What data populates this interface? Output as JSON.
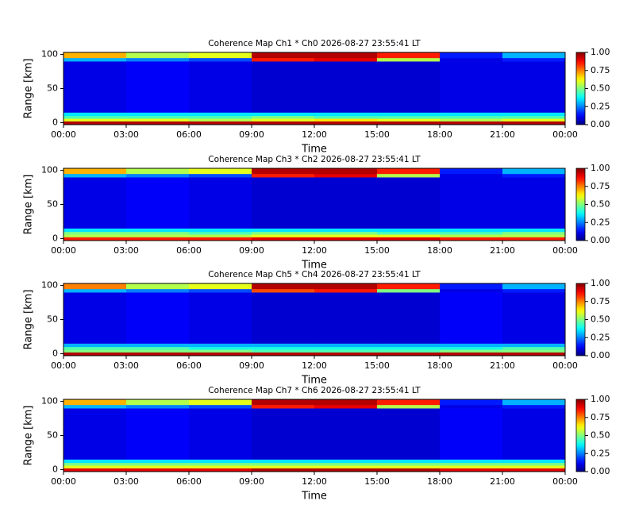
{
  "chart_data": [
    {
      "type": "heatmap",
      "title": "Coherence Map Ch1 * Ch0 2026-08-27 23:55:41 LT",
      "xlabel": "Time",
      "ylabel": "Range [km]",
      "x_edges": [
        0,
        3,
        6,
        9,
        12,
        15,
        18,
        21,
        24
      ],
      "y_edges": [
        -3,
        2,
        6,
        10,
        15,
        90,
        95,
        103
      ],
      "values": [
        [
          0.95,
          0.95,
          0.95,
          0.95,
          0.95,
          0.95,
          0.95,
          0.95
        ],
        [
          0.6,
          0.6,
          0.55,
          0.6,
          0.65,
          0.6,
          0.55,
          0.6
        ],
        [
          0.45,
          0.45,
          0.45,
          0.5,
          0.45,
          0.45,
          0.45,
          0.45
        ],
        [
          0.35,
          0.35,
          0.35,
          0.35,
          0.35,
          0.35,
          0.35,
          0.35
        ],
        [
          0.1,
          0.12,
          0.1,
          0.08,
          0.08,
          0.08,
          0.1,
          0.1
        ],
        [
          0.3,
          0.25,
          0.2,
          0.85,
          0.9,
          0.55,
          0.1,
          0.15
        ],
        [
          0.7,
          0.55,
          0.6,
          0.95,
          0.95,
          0.85,
          0.15,
          0.3
        ]
      ],
      "xlim": [
        0,
        24
      ],
      "ylim": [
        -3,
        103
      ],
      "xticks": [
        {
          "value": 0,
          "label": "00:00"
        },
        {
          "value": 3,
          "label": "03:00"
        },
        {
          "value": 6,
          "label": "06:00"
        },
        {
          "value": 9,
          "label": "09:00"
        },
        {
          "value": 12,
          "label": "12:00"
        },
        {
          "value": 15,
          "label": "15:00"
        },
        {
          "value": 18,
          "label": "18:00"
        },
        {
          "value": 21,
          "label": "21:00"
        },
        {
          "value": 24,
          "label": "00:00"
        }
      ],
      "yticks": [
        0,
        50,
        100
      ],
      "colormap": "jet",
      "clim": [
        0,
        1
      ],
      "cticks": [
        {
          "value": 0,
          "label": "0.00"
        },
        {
          "value": 0.25,
          "label": "0.25"
        },
        {
          "value": 0.5,
          "label": "0.50"
        },
        {
          "value": 0.75,
          "label": "0.75"
        },
        {
          "value": 1,
          "label": "1.00"
        }
      ]
    },
    {
      "type": "heatmap",
      "title": "Coherence Map Ch3 * Ch2 2026-08-27 23:55:41 LT",
      "xlabel": "Time",
      "ylabel": "Range [km]",
      "x_edges": [
        0,
        3,
        6,
        9,
        12,
        15,
        18,
        21,
        24
      ],
      "y_edges": [
        -3,
        2,
        6,
        10,
        15,
        90,
        95,
        103
      ],
      "values": [
        [
          0.85,
          0.85,
          0.85,
          0.9,
          0.9,
          0.9,
          0.85,
          0.85
        ],
        [
          0.55,
          0.55,
          0.55,
          0.6,
          0.6,
          0.6,
          0.55,
          0.55
        ],
        [
          0.5,
          0.5,
          0.45,
          0.5,
          0.5,
          0.45,
          0.45,
          0.5
        ],
        [
          0.35,
          0.35,
          0.35,
          0.35,
          0.35,
          0.35,
          0.35,
          0.35
        ],
        [
          0.1,
          0.12,
          0.1,
          0.08,
          0.08,
          0.08,
          0.1,
          0.1
        ],
        [
          0.3,
          0.25,
          0.2,
          0.85,
          0.9,
          0.55,
          0.1,
          0.15
        ],
        [
          0.7,
          0.55,
          0.6,
          0.95,
          0.95,
          0.85,
          0.15,
          0.3
        ]
      ],
      "xlim": [
        0,
        24
      ],
      "ylim": [
        -3,
        103
      ],
      "xticks": [
        {
          "value": 0,
          "label": "00:00"
        },
        {
          "value": 3,
          "label": "03:00"
        },
        {
          "value": 6,
          "label": "06:00"
        },
        {
          "value": 9,
          "label": "09:00"
        },
        {
          "value": 12,
          "label": "12:00"
        },
        {
          "value": 15,
          "label": "15:00"
        },
        {
          "value": 18,
          "label": "18:00"
        },
        {
          "value": 21,
          "label": "21:00"
        },
        {
          "value": 24,
          "label": "00:00"
        }
      ],
      "yticks": [
        0,
        50,
        100
      ],
      "colormap": "jet",
      "clim": [
        0,
        1
      ],
      "cticks": [
        {
          "value": 0,
          "label": "0.00"
        },
        {
          "value": 0.25,
          "label": "0.25"
        },
        {
          "value": 0.5,
          "label": "0.50"
        },
        {
          "value": 0.75,
          "label": "0.75"
        },
        {
          "value": 1,
          "label": "1.00"
        }
      ]
    },
    {
      "type": "heatmap",
      "title": "Coherence Map Ch5 * Ch4 2026-08-27 23:55:41 LT",
      "xlabel": "Time",
      "ylabel": "Range [km]",
      "x_edges": [
        0,
        3,
        6,
        9,
        12,
        15,
        18,
        21,
        24
      ],
      "y_edges": [
        -3,
        2,
        6,
        10,
        15,
        90,
        95,
        103
      ],
      "values": [
        [
          0.95,
          0.95,
          0.95,
          0.95,
          0.95,
          0.95,
          0.95,
          0.95
        ],
        [
          0.5,
          0.5,
          0.5,
          0.45,
          0.45,
          0.45,
          0.5,
          0.5
        ],
        [
          0.45,
          0.45,
          0.4,
          0.4,
          0.4,
          0.4,
          0.4,
          0.45
        ],
        [
          0.3,
          0.3,
          0.3,
          0.3,
          0.3,
          0.3,
          0.3,
          0.3
        ],
        [
          0.1,
          0.12,
          0.1,
          0.08,
          0.08,
          0.08,
          0.12,
          0.1
        ],
        [
          0.3,
          0.25,
          0.2,
          0.8,
          0.85,
          0.5,
          0.1,
          0.15
        ],
        [
          0.75,
          0.55,
          0.6,
          0.95,
          0.95,
          0.85,
          0.15,
          0.3
        ]
      ],
      "xlim": [
        0,
        24
      ],
      "ylim": [
        -3,
        103
      ],
      "xticks": [
        {
          "value": 0,
          "label": "00:00"
        },
        {
          "value": 3,
          "label": "03:00"
        },
        {
          "value": 6,
          "label": "06:00"
        },
        {
          "value": 9,
          "label": "09:00"
        },
        {
          "value": 12,
          "label": "12:00"
        },
        {
          "value": 15,
          "label": "15:00"
        },
        {
          "value": 18,
          "label": "18:00"
        },
        {
          "value": 21,
          "label": "21:00"
        },
        {
          "value": 24,
          "label": "00:00"
        }
      ],
      "yticks": [
        0,
        50,
        100
      ],
      "colormap": "jet",
      "clim": [
        0,
        1
      ],
      "cticks": [
        {
          "value": 0,
          "label": "0.00"
        },
        {
          "value": 0.25,
          "label": "0.25"
        },
        {
          "value": 0.5,
          "label": "0.50"
        },
        {
          "value": 0.75,
          "label": "0.75"
        },
        {
          "value": 1,
          "label": "1.00"
        }
      ]
    },
    {
      "type": "heatmap",
      "title": "Coherence Map Ch7 * Ch6 2026-08-27 23:55:41 LT",
      "xlabel": "Time",
      "ylabel": "Range [km]",
      "x_edges": [
        0,
        3,
        6,
        9,
        12,
        15,
        18,
        21,
        24
      ],
      "y_edges": [
        -3,
        2,
        6,
        10,
        15,
        90,
        95,
        103
      ],
      "values": [
        [
          0.9,
          0.9,
          0.9,
          0.95,
          0.95,
          0.95,
          0.9,
          0.9
        ],
        [
          0.6,
          0.6,
          0.6,
          0.6,
          0.6,
          0.6,
          0.6,
          0.6
        ],
        [
          0.5,
          0.5,
          0.5,
          0.5,
          0.5,
          0.5,
          0.5,
          0.5
        ],
        [
          0.35,
          0.35,
          0.35,
          0.35,
          0.35,
          0.35,
          0.35,
          0.35
        ],
        [
          0.1,
          0.12,
          0.1,
          0.08,
          0.08,
          0.08,
          0.12,
          0.1
        ],
        [
          0.3,
          0.25,
          0.2,
          0.85,
          0.9,
          0.55,
          0.1,
          0.15
        ],
        [
          0.7,
          0.55,
          0.6,
          0.95,
          0.95,
          0.85,
          0.15,
          0.3
        ]
      ],
      "xlim": [
        0,
        24
      ],
      "ylim": [
        -3,
        103
      ],
      "xticks": [
        {
          "value": 0,
          "label": "00:00"
        },
        {
          "value": 3,
          "label": "03:00"
        },
        {
          "value": 6,
          "label": "06:00"
        },
        {
          "value": 9,
          "label": "09:00"
        },
        {
          "value": 12,
          "label": "12:00"
        },
        {
          "value": 15,
          "label": "15:00"
        },
        {
          "value": 18,
          "label": "18:00"
        },
        {
          "value": 21,
          "label": "21:00"
        },
        {
          "value": 24,
          "label": "00:00"
        }
      ],
      "yticks": [
        0,
        50,
        100
      ],
      "colormap": "jet",
      "clim": [
        0,
        1
      ],
      "cticks": [
        {
          "value": 0,
          "label": "0.00"
        },
        {
          "value": 0.25,
          "label": "0.25"
        },
        {
          "value": 0.5,
          "label": "0.50"
        },
        {
          "value": 0.75,
          "label": "0.75"
        },
        {
          "value": 1,
          "label": "1.00"
        }
      ]
    }
  ]
}
